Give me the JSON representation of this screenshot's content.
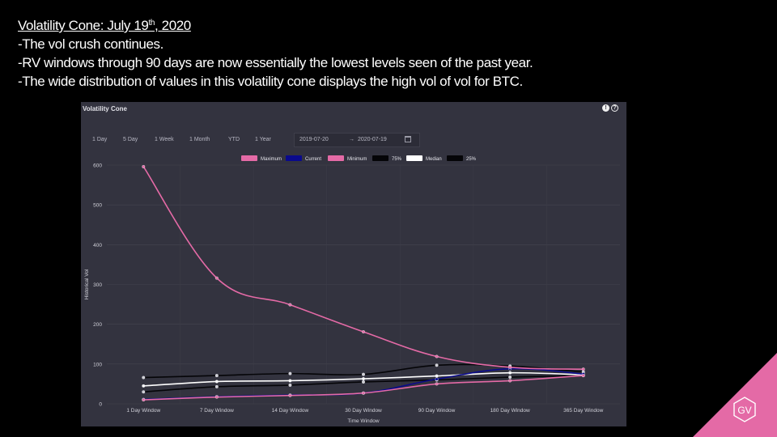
{
  "slide": {
    "title_main": "Volatility Cone: July 19",
    "title_sup": "th",
    "title_end": ", 2020",
    "bullets": [
      "-The vol crush continues.",
      "-RV windows through 90 days are now essentially the lowest levels seen of the past year.",
      "-The wide distribution of values in this volatility cone displays the high vol of vol for BTC."
    ],
    "logo_text": "GV",
    "logo_color": "#e46aa6"
  },
  "panel": {
    "title": "Volatility Cone",
    "icons": [
      "info-icon",
      "help-icon"
    ],
    "range_buttons": [
      "1 Day",
      "5 Day",
      "1 Week",
      "1 Month",
      "YTD",
      "1 Year"
    ],
    "date_from": "2019-07-20",
    "date_separator": "→",
    "date_to": "2020-07-19",
    "background": "#33333f"
  },
  "chart_data": {
    "type": "line",
    "title": "",
    "xlabel": "Time Window",
    "ylabel": "Historical Vol",
    "ylim": [
      0,
      600
    ],
    "yticks": [
      0,
      100,
      200,
      300,
      400,
      500,
      600
    ],
    "grid": true,
    "legend_position": "top",
    "categories": [
      "1 Day Window",
      "7 Day Window",
      "14 Day Window",
      "30 Day Window",
      "90 Day Window",
      "180 Day Window",
      "365 Day Window"
    ],
    "series": [
      {
        "name": "Maximum",
        "color": "#e46aa6",
        "values": [
          596,
          316,
          249,
          181,
          119,
          92,
          87
        ]
      },
      {
        "name": "Current",
        "color": "#0a0a8c",
        "values": [
          11,
          18,
          22,
          27,
          62,
          88,
          75
        ]
      },
      {
        "name": "Minimum",
        "color": "#e46aa6",
        "values": [
          10,
          17,
          21,
          27,
          50,
          58,
          71
        ]
      },
      {
        "name": "75%",
        "color": "#050508",
        "values": [
          66,
          71,
          76,
          74,
          97,
          95,
          80
        ]
      },
      {
        "name": "Median",
        "color": "#ffffff",
        "values": [
          45,
          56,
          58,
          63,
          70,
          78,
          73
        ]
      },
      {
        "name": "25%",
        "color": "#050508",
        "values": [
          30,
          43,
          47,
          55,
          60,
          67,
          71
        ]
      }
    ]
  }
}
